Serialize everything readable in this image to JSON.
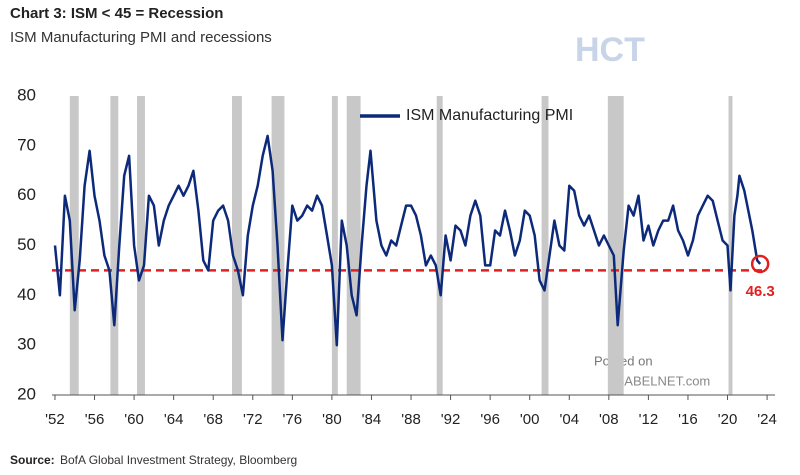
{
  "chart_data": {
    "type": "line",
    "title": "Chart 3: ISM < 45 = Recession",
    "subtitle": "ISM Manufacturing PMI and recessions",
    "source_label": "Source:",
    "source": "BofA Global Investment Strategy, Bloomberg",
    "watermarks": [
      "HCT",
      "Posted on",
      "ISABELNET.com"
    ],
    "x": [
      1952.0,
      1952.5,
      1953.0,
      1953.5,
      1954.0,
      1954.5,
      1955.0,
      1955.5,
      1956.0,
      1956.5,
      1957.0,
      1957.5,
      1958.0,
      1958.5,
      1959.0,
      1959.5,
      1960.0,
      1960.5,
      1961.0,
      1961.5,
      1962.0,
      1962.5,
      1963.0,
      1963.5,
      1964.0,
      1964.5,
      1965.0,
      1965.5,
      1966.0,
      1966.5,
      1967.0,
      1967.5,
      1968.0,
      1968.5,
      1969.0,
      1969.5,
      1970.0,
      1970.5,
      1971.0,
      1971.5,
      1972.0,
      1972.5,
      1973.0,
      1973.5,
      1974.0,
      1974.5,
      1975.0,
      1975.5,
      1976.0,
      1976.5,
      1977.0,
      1977.5,
      1978.0,
      1978.5,
      1979.0,
      1979.5,
      1980.0,
      1980.5,
      1981.0,
      1981.5,
      1982.0,
      1982.5,
      1983.0,
      1983.5,
      1983.9,
      1984.5,
      1985.0,
      1985.5,
      1986.0,
      1986.5,
      1987.0,
      1987.5,
      1988.0,
      1988.5,
      1989.0,
      1989.5,
      1990.0,
      1990.5,
      1991.0,
      1991.5,
      1992.0,
      1992.5,
      1993.0,
      1993.5,
      1994.0,
      1994.5,
      1995.0,
      1995.5,
      1996.0,
      1996.5,
      1997.0,
      1997.5,
      1998.0,
      1998.5,
      1999.0,
      1999.5,
      2000.0,
      2000.5,
      2001.0,
      2001.5,
      2002.0,
      2002.5,
      2003.0,
      2003.5,
      2004.0,
      2004.5,
      2005.0,
      2005.5,
      2006.0,
      2006.5,
      2007.0,
      2007.5,
      2008.0,
      2008.5,
      2008.9,
      2009.5,
      2010.0,
      2010.5,
      2011.0,
      2011.5,
      2012.0,
      2012.5,
      2013.0,
      2013.5,
      2014.0,
      2014.5,
      2015.0,
      2015.5,
      2016.0,
      2016.5,
      2017.0,
      2017.5,
      2018.0,
      2018.5,
      2019.0,
      2019.5,
      2020.0,
      2020.3,
      2020.7,
      2021.0,
      2021.2,
      2021.7,
      2022.0,
      2022.5,
      2023.0,
      2023.3
    ],
    "series": [
      {
        "name": "ISM Manufacturing PMI",
        "color": "#0d2a7a",
        "values": [
          50,
          40,
          60,
          55,
          37,
          47,
          62,
          69,
          60,
          55,
          48,
          45,
          34,
          50,
          64,
          68,
          50,
          43,
          46,
          60,
          58,
          50,
          55,
          58,
          60,
          62,
          60,
          62,
          65,
          57,
          47,
          45,
          55,
          57,
          58,
          55,
          48,
          45,
          40,
          52,
          58,
          62,
          68,
          72,
          65,
          50,
          31,
          45,
          58,
          55,
          56,
          58,
          57,
          60,
          58,
          52,
          46,
          30,
          55,
          50,
          40,
          36,
          50,
          62,
          69,
          55,
          50,
          48,
          51,
          50,
          54,
          58,
          58,
          56,
          52,
          46,
          48,
          46,
          40,
          52,
          47,
          54,
          53,
          50,
          56,
          59,
          56,
          46,
          46,
          53,
          52,
          57,
          53,
          48,
          51,
          57,
          56,
          52,
          43,
          41,
          48,
          55,
          50,
          49,
          62,
          61,
          56,
          54,
          56,
          53,
          50,
          52,
          50,
          48,
          34,
          49,
          58,
          56,
          60,
          51,
          54,
          50,
          53,
          55,
          55,
          58,
          53,
          51,
          48,
          51,
          56,
          58,
          60,
          59,
          55,
          51,
          50,
          41,
          56,
          60,
          64,
          61,
          58,
          53,
          47,
          46.3
        ]
      }
    ],
    "recessions": [
      [
        1953.5,
        1954.4
      ],
      [
        1957.6,
        1958.4
      ],
      [
        1960.3,
        1961.1
      ],
      [
        1969.9,
        1970.9
      ],
      [
        1973.9,
        1975.2
      ],
      [
        1980.0,
        1980.6
      ],
      [
        1981.5,
        1982.9
      ],
      [
        1990.6,
        1991.2
      ],
      [
        2001.2,
        2001.9
      ],
      [
        2007.9,
        2009.5
      ],
      [
        2020.1,
        2020.5
      ]
    ],
    "threshold": 45,
    "threshold_color": "#e02020",
    "recession_color": "#c8c8c8",
    "annotations": [
      {
        "x": 2023.3,
        "y": 46.3,
        "text": "46.3"
      }
    ],
    "xlim": [
      1951.7,
      2024.8
    ],
    "xticks": [
      {
        "value": 1952,
        "label": "'52"
      },
      {
        "value": 1956,
        "label": "'56"
      },
      {
        "value": 1960,
        "label": "'60"
      },
      {
        "value": 1964,
        "label": "'64"
      },
      {
        "value": 1968,
        "label": "'68"
      },
      {
        "value": 1972,
        "label": "'72"
      },
      {
        "value": 1976,
        "label": "'76"
      },
      {
        "value": 1980,
        "label": "'80"
      },
      {
        "value": 1984,
        "label": "'84"
      },
      {
        "value": 1988,
        "label": "'88"
      },
      {
        "value": 1992,
        "label": "'92"
      },
      {
        "value": 1996,
        "label": "'96"
      },
      {
        "value": 2000,
        "label": "'00"
      },
      {
        "value": 2004,
        "label": "'04"
      },
      {
        "value": 2008,
        "label": "'08"
      },
      {
        "value": 2012,
        "label": "'12"
      },
      {
        "value": 2016,
        "label": "'16"
      },
      {
        "value": 2020,
        "label": "'20"
      },
      {
        "value": 2024,
        "label": "'24"
      }
    ],
    "ylim": [
      20,
      80
    ],
    "yticks": [
      20,
      30,
      40,
      50,
      60,
      70,
      80
    ],
    "grid": false,
    "legend": "top"
  }
}
